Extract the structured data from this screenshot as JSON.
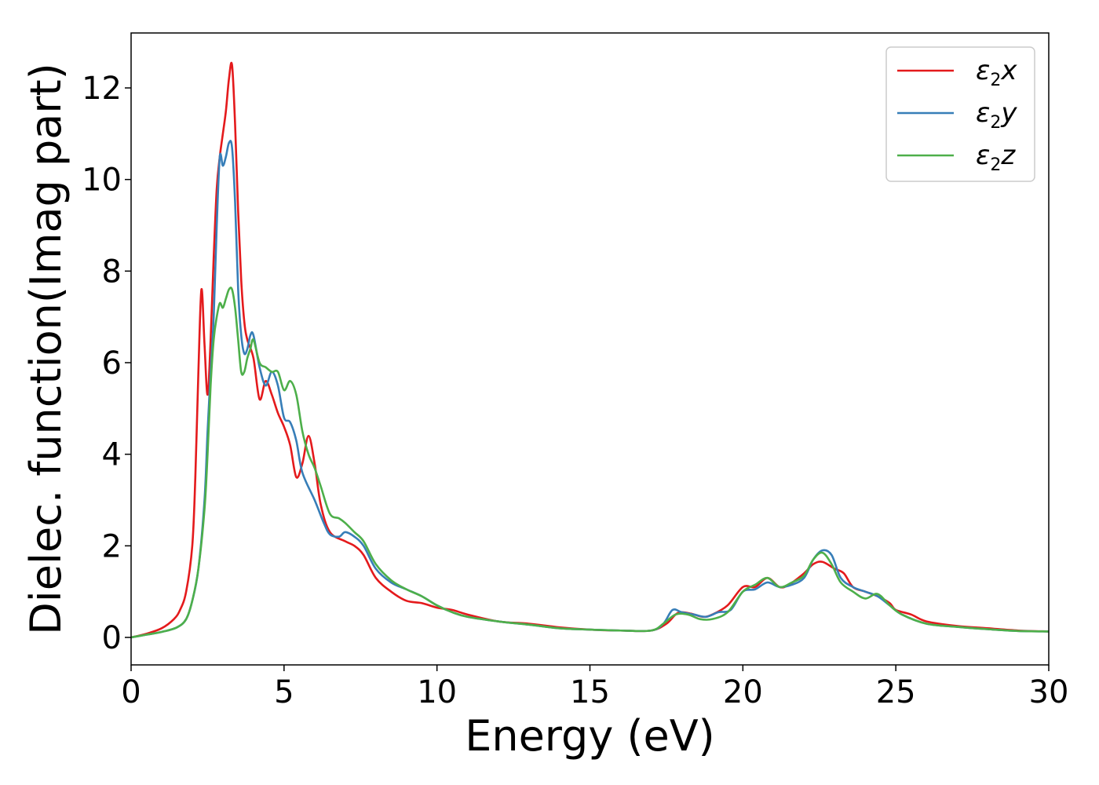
{
  "chart_data": {
    "type": "line",
    "xlabel": "Energy (eV)",
    "ylabel": "Dielec. function(Imag part)",
    "xlim": [
      0,
      30
    ],
    "ylim": [
      -0.6,
      13.2
    ],
    "xticks": [
      0,
      5,
      10,
      15,
      20,
      25,
      30
    ],
    "yticks": [
      0,
      2,
      4,
      6,
      8,
      10,
      12
    ],
    "grid": false,
    "legend_position": "top-right",
    "series": [
      {
        "name": "ε2x",
        "legend_base": "ε",
        "legend_sub": "2",
        "legend_tail": "x",
        "color": "#e41a1c",
        "x": [
          0,
          0.5,
          1.0,
          1.4,
          1.6,
          1.8,
          2.0,
          2.1,
          2.2,
          2.3,
          2.4,
          2.5,
          2.6,
          2.7,
          2.8,
          2.9,
          3.0,
          3.1,
          3.2,
          3.3,
          3.4,
          3.5,
          3.6,
          3.7,
          3.8,
          4.0,
          4.2,
          4.4,
          4.6,
          4.8,
          5.0,
          5.2,
          5.4,
          5.6,
          5.8,
          6.0,
          6.2,
          6.5,
          7.0,
          7.3,
          7.6,
          8.0,
          8.5,
          9.0,
          9.5,
          10.0,
          10.5,
          11.0,
          12.0,
          13.0,
          14.0,
          15.0,
          16.0,
          17.0,
          17.5,
          17.8,
          18.0,
          18.3,
          18.7,
          19.0,
          19.5,
          20.0,
          20.4,
          20.8,
          21.2,
          21.5,
          22.0,
          22.3,
          22.6,
          23.0,
          23.3,
          23.6,
          24.0,
          24.4,
          24.8,
          25.0,
          25.5,
          26.0,
          27.0,
          28.0,
          29.0,
          30.0
        ],
        "y": [
          0,
          0.08,
          0.2,
          0.4,
          0.6,
          1.0,
          2.0,
          3.5,
          5.8,
          7.6,
          6.4,
          5.3,
          6.5,
          8.3,
          9.8,
          10.5,
          11.0,
          11.5,
          12.2,
          12.5,
          11.2,
          9.3,
          7.8,
          6.9,
          6.5,
          6.1,
          5.2,
          5.6,
          5.3,
          4.9,
          4.6,
          4.2,
          3.5,
          3.8,
          4.4,
          3.8,
          2.9,
          2.3,
          2.1,
          2.0,
          1.8,
          1.3,
          1.0,
          0.8,
          0.75,
          0.65,
          0.6,
          0.5,
          0.35,
          0.3,
          0.22,
          0.17,
          0.15,
          0.15,
          0.3,
          0.5,
          0.55,
          0.52,
          0.45,
          0.5,
          0.7,
          1.1,
          1.1,
          1.3,
          1.1,
          1.15,
          1.4,
          1.6,
          1.65,
          1.5,
          1.4,
          1.1,
          1.0,
          0.9,
          0.75,
          0.6,
          0.5,
          0.35,
          0.25,
          0.2,
          0.15,
          0.13
        ]
      },
      {
        "name": "ε2y",
        "legend_base": "ε",
        "legend_sub": "2",
        "legend_tail": "y",
        "color": "#377eb8",
        "x": [
          0,
          0.5,
          1.0,
          1.5,
          1.8,
          2.0,
          2.2,
          2.4,
          2.5,
          2.6,
          2.7,
          2.8,
          2.9,
          3.0,
          3.1,
          3.2,
          3.3,
          3.4,
          3.5,
          3.6,
          3.7,
          3.8,
          3.9,
          4.0,
          4.2,
          4.4,
          4.6,
          4.8,
          5.0,
          5.2,
          5.4,
          5.6,
          6.0,
          6.3,
          6.5,
          6.8,
          7.0,
          7.3,
          7.6,
          8.0,
          8.5,
          9.0,
          9.5,
          10.0,
          10.5,
          11.0,
          12.0,
          13.0,
          14.0,
          15.0,
          16.0,
          17.0,
          17.4,
          17.7,
          18.0,
          18.4,
          18.8,
          19.2,
          19.6,
          20.0,
          20.4,
          20.8,
          21.2,
          21.6,
          22.0,
          22.3,
          22.6,
          22.9,
          23.2,
          23.6,
          24.0,
          24.4,
          24.8,
          25.2,
          26.0,
          27.0,
          28.0,
          29.0,
          30.0
        ],
        "y": [
          0,
          0.06,
          0.12,
          0.22,
          0.4,
          0.8,
          1.5,
          3.0,
          4.5,
          5.8,
          7.0,
          9.0,
          10.5,
          10.3,
          10.5,
          10.8,
          10.7,
          9.5,
          7.6,
          6.6,
          6.2,
          6.3,
          6.6,
          6.6,
          5.9,
          5.5,
          5.8,
          5.5,
          4.8,
          4.7,
          4.3,
          3.6,
          3.0,
          2.5,
          2.25,
          2.2,
          2.3,
          2.2,
          2.0,
          1.5,
          1.2,
          1.05,
          0.9,
          0.7,
          0.55,
          0.45,
          0.35,
          0.28,
          0.2,
          0.17,
          0.15,
          0.15,
          0.3,
          0.6,
          0.55,
          0.5,
          0.45,
          0.55,
          0.6,
          1.0,
          1.05,
          1.2,
          1.1,
          1.15,
          1.3,
          1.7,
          1.9,
          1.8,
          1.3,
          1.1,
          1.0,
          0.9,
          0.7,
          0.5,
          0.3,
          0.23,
          0.18,
          0.14,
          0.13
        ]
      },
      {
        "name": "ε2z",
        "legend_base": "ε",
        "legend_sub": "2",
        "legend_tail": "z",
        "color": "#4daf4a",
        "x": [
          0,
          0.5,
          1.0,
          1.5,
          1.8,
          2.0,
          2.2,
          2.4,
          2.5,
          2.6,
          2.7,
          2.8,
          2.9,
          3.0,
          3.1,
          3.2,
          3.3,
          3.4,
          3.5,
          3.6,
          3.7,
          3.8,
          3.9,
          4.0,
          4.2,
          4.4,
          4.6,
          4.8,
          5.0,
          5.2,
          5.4,
          5.6,
          5.8,
          6.0,
          6.2,
          6.5,
          6.8,
          7.0,
          7.3,
          7.6,
          8.0,
          8.5,
          9.0,
          9.5,
          10.0,
          10.5,
          11.0,
          12.0,
          13.0,
          14.0,
          15.0,
          16.0,
          17.0,
          17.4,
          17.8,
          18.2,
          18.6,
          19.0,
          19.5,
          20.0,
          20.4,
          20.8,
          21.2,
          21.6,
          22.0,
          22.3,
          22.6,
          22.9,
          23.2,
          23.6,
          24.0,
          24.4,
          24.8,
          25.2,
          26.0,
          27.0,
          28.0,
          29.0,
          30.0
        ],
        "y": [
          0,
          0.06,
          0.12,
          0.22,
          0.4,
          0.8,
          1.5,
          2.8,
          4.0,
          5.5,
          6.5,
          7.0,
          7.3,
          7.2,
          7.4,
          7.6,
          7.6,
          7.2,
          6.5,
          5.8,
          5.8,
          6.1,
          6.3,
          6.5,
          6.0,
          5.9,
          5.8,
          5.8,
          5.4,
          5.6,
          5.3,
          4.5,
          4.0,
          3.7,
          3.3,
          2.7,
          2.6,
          2.5,
          2.3,
          2.1,
          1.6,
          1.25,
          1.05,
          0.9,
          0.7,
          0.55,
          0.45,
          0.35,
          0.28,
          0.2,
          0.17,
          0.15,
          0.15,
          0.3,
          0.5,
          0.5,
          0.4,
          0.4,
          0.55,
          1.0,
          1.15,
          1.3,
          1.1,
          1.2,
          1.35,
          1.7,
          1.85,
          1.6,
          1.2,
          1.0,
          0.85,
          0.95,
          0.7,
          0.5,
          0.3,
          0.23,
          0.18,
          0.14,
          0.13
        ]
      }
    ]
  }
}
